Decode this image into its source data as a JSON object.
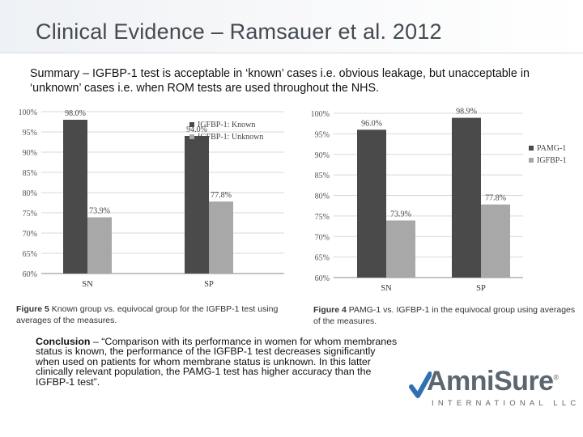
{
  "slide": {
    "title": "Clinical Evidence – Ramsauer et al. 2012",
    "summary": "Summary – IGFBP-1 test is acceptable in ‘known’ cases i.e. obvious leakage, but unacceptable in ‘unknown’ cases i.e. when ROM tests are used throughout the NHS.",
    "conclusion_lead": "Conclusion",
    "conclusion_text": " – “Comparison with its performance in women for whom membranes status is known, the performance of the IGFBP-1 test decreases significantly when used on patients for whom membrane status is unknown. In this latter clinically relevant population, the PAMG-1 test has higher accuracy than the IGFBP-1 test”."
  },
  "logo": {
    "name": "AmniSure",
    "subtitle": "INTERNATIONAL LLC",
    "registered": "®",
    "colors": {
      "text": "#5b6670",
      "swoosh": "#2f6fb3"
    }
  },
  "captions": {
    "left_fig": "Figure 5",
    "left_text": "Known group vs. equivocal group for the IGFBP-1 test using averages of the measures.",
    "right_fig": "Figure 4",
    "right_text": "PAMG-1 vs. IGFBP-1 in the equivocal group using averages of the measures."
  },
  "chart_data": [
    {
      "type": "bar",
      "categories": [
        "SN",
        "SP"
      ],
      "series": [
        {
          "name": "IGFBP-1: Known",
          "values": [
            98.0,
            94.0
          ],
          "labels": [
            "98.0%",
            "94.0%"
          ],
          "color": "#4a4a4a"
        },
        {
          "name": "IGFBP-1: Unknown",
          "values": [
            73.9,
            77.8
          ],
          "labels": [
            "73.9%",
            "77.8%"
          ],
          "color": "#a8a8a8"
        }
      ],
      "ylim": [
        60,
        100
      ],
      "yticks": [
        "60%",
        "65%",
        "70%",
        "75%",
        "80%",
        "85%",
        "90%",
        "95%",
        "100%"
      ],
      "grid": true,
      "legend": "top-right"
    },
    {
      "type": "bar",
      "categories": [
        "SN",
        "SP"
      ],
      "series": [
        {
          "name": "PAMG-1",
          "values": [
            96.0,
            98.9
          ],
          "labels": [
            "96.0%",
            "98.9%"
          ],
          "color": "#4a4a4a"
        },
        {
          "name": "IGFBP-1",
          "values": [
            73.9,
            77.8
          ],
          "labels": [
            "73.9%",
            "77.8%"
          ],
          "color": "#a8a8a8"
        }
      ],
      "ylim": [
        60,
        100
      ],
      "yticks": [
        "60%",
        "65%",
        "70%",
        "75%",
        "80%",
        "85%",
        "90%",
        "95%",
        "100%"
      ],
      "grid": true,
      "legend": "right"
    }
  ]
}
